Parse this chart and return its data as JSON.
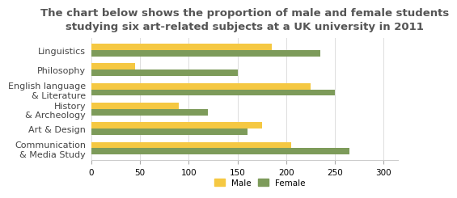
{
  "title_line1": "The chart below shows the proportion of male and female students",
  "title_line2": "studying six art-related subjects at a UK university in 2011",
  "categories": [
    "Linguistics",
    "Philosophy",
    "English language\n& Literature",
    "History\n& Archeology",
    "Art & Design",
    "Communication\n& Media Study"
  ],
  "male_values": [
    185,
    45,
    225,
    90,
    175,
    205
  ],
  "female_values": [
    235,
    150,
    250,
    120,
    160,
    265
  ],
  "male_color": "#F5C842",
  "female_color": "#7D9B5A",
  "xlim": [
    0,
    315
  ],
  "xticks": [
    0,
    50,
    100,
    150,
    200,
    250,
    300
  ],
  "bar_height": 0.32,
  "background_color": "#FFFFFF",
  "title_fontsize": 9.5,
  "title_color": "#555555",
  "legend_labels": [
    "Male",
    "Female"
  ],
  "label_fontsize": 8.0,
  "tick_fontsize": 7.5
}
